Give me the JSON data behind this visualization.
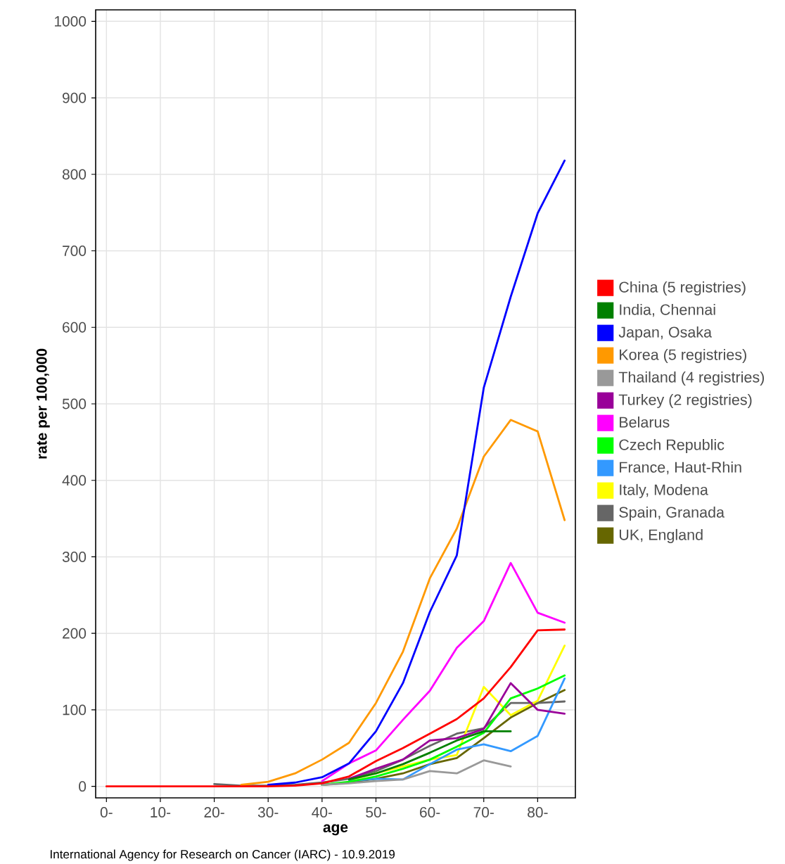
{
  "chart_data": {
    "type": "line",
    "xlabel": "age",
    "ylabel": "rate per 100,000",
    "annotations": [
      "International Agency for Research on Cancer (IARC) - 10.9.2019"
    ],
    "x": [
      0,
      5,
      10,
      15,
      20,
      25,
      30,
      35,
      40,
      45,
      50,
      55,
      60,
      65,
      70,
      75,
      80,
      85
    ],
    "xlim": [
      -2,
      87
    ],
    "ylim": [
      -15,
      1015
    ],
    "xticks": [
      {
        "value": 0,
        "label": "0-"
      },
      {
        "value": 10,
        "label": "10-"
      },
      {
        "value": 20,
        "label": "20-"
      },
      {
        "value": 30,
        "label": "30-"
      },
      {
        "value": 40,
        "label": "40-"
      },
      {
        "value": 50,
        "label": "50-"
      },
      {
        "value": 60,
        "label": "60-"
      },
      {
        "value": 70,
        "label": "70-"
      },
      {
        "value": 80,
        "label": "80-"
      }
    ],
    "yticks": [
      0,
      100,
      200,
      300,
      400,
      500,
      600,
      700,
      800,
      900,
      1000
    ],
    "grid": true,
    "legend": "right",
    "series": [
      {
        "name": "China (5 registries)",
        "color": "#ff0000",
        "values": [
          0,
          0,
          0,
          0,
          0,
          0,
          0,
          1,
          4,
          13,
          33,
          50,
          69,
          88,
          115,
          156,
          204,
          205
        ]
      },
      {
        "name": "India, Chennai",
        "color": "#008000",
        "values": [
          null,
          null,
          null,
          null,
          null,
          null,
          null,
          null,
          null,
          9,
          17,
          29,
          44,
          60,
          72,
          72,
          null,
          null
        ]
      },
      {
        "name": "Japan, Osaka",
        "color": "#0000ff",
        "values": [
          null,
          null,
          null,
          null,
          null,
          null,
          2,
          5,
          12,
          30,
          72,
          135,
          228,
          302,
          521,
          640,
          749,
          818
        ]
      },
      {
        "name": "Korea (5 registries)",
        "color": "#ff9900",
        "values": [
          null,
          null,
          null,
          null,
          null,
          2,
          6,
          17,
          35,
          57,
          109,
          176,
          272,
          337,
          431,
          479,
          464,
          348
        ]
      },
      {
        "name": "Thailand (4 registries)",
        "color": "#999999",
        "values": [
          null,
          null,
          null,
          null,
          null,
          null,
          null,
          null,
          2,
          4,
          7,
          9,
          20,
          17,
          34,
          26,
          null,
          null
        ]
      },
      {
        "name": "Turkey (2 registries)",
        "color": "#990099",
        "values": [
          null,
          null,
          null,
          null,
          null,
          null,
          null,
          null,
          null,
          10,
          23,
          35,
          60,
          63,
          75,
          135,
          100,
          95
        ]
      },
      {
        "name": "Belarus",
        "color": "#ff00ff",
        "values": [
          null,
          null,
          null,
          null,
          null,
          null,
          null,
          null,
          7,
          30,
          47,
          87,
          125,
          181,
          216,
          292,
          227,
          214
        ]
      },
      {
        "name": "Czech Republic",
        "color": "#00ff00",
        "values": [
          null,
          null,
          null,
          null,
          null,
          null,
          null,
          null,
          2,
          6,
          13,
          23,
          35,
          52,
          70,
          115,
          128,
          145
        ]
      },
      {
        "name": "France, Haut-Rhin",
        "color": "#3399ff",
        "values": [
          null,
          null,
          null,
          null,
          null,
          null,
          null,
          null,
          null,
          7,
          10,
          9,
          29,
          48,
          55,
          46,
          66,
          141
        ]
      },
      {
        "name": "Italy, Modena",
        "color": "#ffff00",
        "values": [
          null,
          null,
          null,
          null,
          null,
          null,
          null,
          null,
          null,
          8,
          17,
          26,
          35,
          41,
          130,
          93,
          112,
          184
        ]
      },
      {
        "name": "Spain, Granada",
        "color": "#666666",
        "values": [
          null,
          null,
          null,
          null,
          3,
          1,
          1,
          2,
          5,
          10,
          20,
          35,
          53,
          69,
          76,
          109,
          109,
          111
        ]
      },
      {
        "name": "UK, England",
        "color": "#666600",
        "values": [
          null,
          null,
          null,
          null,
          null,
          null,
          null,
          null,
          2,
          5,
          10,
          17,
          29,
          37,
          63,
          90,
          109,
          126
        ]
      }
    ]
  }
}
